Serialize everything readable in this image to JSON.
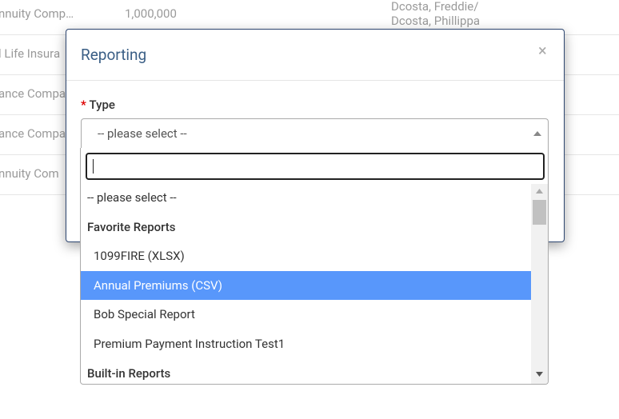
{
  "table": {
    "rows": [
      {
        "company": "nnuity Comp…",
        "amount": "1,000,000",
        "owner": [
          "Dcosta, Freddie/",
          "Dcosta, Phillippa"
        ]
      },
      {
        "company": "l Life Insura"
      },
      {
        "company": "ance Compa"
      },
      {
        "company": "ance Compa"
      },
      {
        "company": "nnuity Com"
      }
    ]
  },
  "modal": {
    "title": "Reporting",
    "close": "×",
    "field": {
      "required": "*",
      "label": "Type",
      "selected": "-- please select --"
    },
    "dropdown": {
      "items": [
        {
          "kind": "option",
          "text": "-- please select --"
        },
        {
          "kind": "group",
          "text": "Favorite Reports"
        },
        {
          "kind": "option",
          "text": "1099FIRE (XLSX)"
        },
        {
          "kind": "option",
          "text": "Annual Premiums (CSV)",
          "highlighted": true
        },
        {
          "kind": "option",
          "text": "Bob Special Report"
        },
        {
          "kind": "option",
          "text": "Premium Payment Instruction Test1"
        },
        {
          "kind": "group",
          "text": "Built-in Reports"
        }
      ]
    }
  }
}
